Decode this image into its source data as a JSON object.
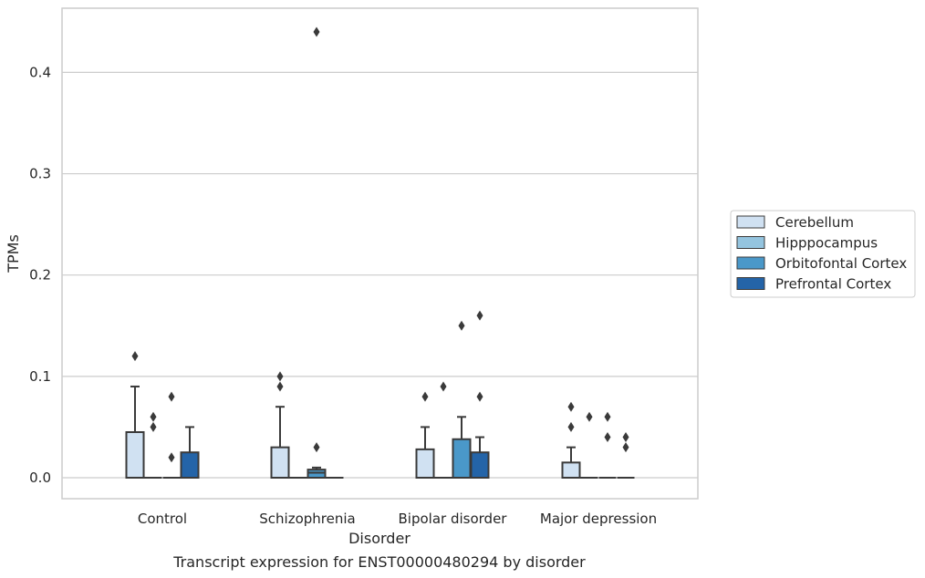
{
  "chart_data": {
    "type": "box",
    "title": "Transcript expression for ENST00000480294 by disorder",
    "xlabel": "Disorder",
    "ylabel": "TPMs",
    "ylim": [
      -0.021,
      0.465
    ],
    "yticks": [
      0.0,
      0.1,
      0.2,
      0.3,
      0.4
    ],
    "ytick_labels": [
      "0.0",
      "0.1",
      "0.2",
      "0.3",
      "0.4"
    ],
    "grid": "horizontal",
    "legend_position": "outside-right",
    "categories": [
      "Control",
      "Schizophrenia",
      "Bipolar disorder",
      "Major depression"
    ],
    "series": [
      {
        "name": "Cerebellum",
        "color": "#d0e1f2",
        "boxes": [
          {
            "q1": 0,
            "median": 0,
            "q3": 0.045,
            "whisker_low": 0,
            "whisker_high": 0.09,
            "outliers": [
              0.12
            ]
          },
          {
            "q1": 0,
            "median": 0,
            "q3": 0.03,
            "whisker_low": 0,
            "whisker_high": 0.07,
            "outliers": [
              0.09,
              0.1
            ]
          },
          {
            "q1": 0,
            "median": 0,
            "q3": 0.028,
            "whisker_low": 0,
            "whisker_high": 0.05,
            "outliers": [
              0.08
            ]
          },
          {
            "q1": 0,
            "median": 0,
            "q3": 0.015,
            "whisker_low": 0,
            "whisker_high": 0.03,
            "outliers": [
              0.05,
              0.07
            ]
          }
        ]
      },
      {
        "name": "Hipppocampus",
        "color": "#94c4df",
        "boxes": [
          {
            "q1": 0,
            "median": 0,
            "q3": 0,
            "whisker_low": 0,
            "whisker_high": 0,
            "outliers": [
              0.05,
              0.06
            ]
          },
          {
            "q1": 0,
            "median": 0,
            "q3": 0,
            "whisker_low": 0,
            "whisker_high": 0,
            "outliers": []
          },
          {
            "q1": 0,
            "median": 0,
            "q3": 0,
            "whisker_low": 0,
            "whisker_high": 0,
            "outliers": [
              0.09
            ]
          },
          {
            "q1": 0,
            "median": 0,
            "q3": 0,
            "whisker_low": 0,
            "whisker_high": 0,
            "outliers": [
              0.06
            ]
          }
        ]
      },
      {
        "name": "Orbitofontal Cortex",
        "color": "#4a98c9",
        "boxes": [
          {
            "q1": 0,
            "median": 0,
            "q3": 0,
            "whisker_low": 0,
            "whisker_high": 0,
            "outliers": [
              0.02,
              0.08
            ]
          },
          {
            "q1": 0,
            "median": 0.005,
            "q3": 0.008,
            "whisker_low": 0,
            "whisker_high": 0.01,
            "outliers": [
              0.03,
              0.44
            ]
          },
          {
            "q1": 0,
            "median": 0,
            "q3": 0.038,
            "whisker_low": 0,
            "whisker_high": 0.06,
            "outliers": [
              0.15
            ]
          },
          {
            "q1": 0,
            "median": 0,
            "q3": 0,
            "whisker_low": 0,
            "whisker_high": 0,
            "outliers": [
              0.04,
              0.06
            ]
          }
        ]
      },
      {
        "name": "Prefrontal Cortex",
        "color": "#2464a8",
        "boxes": [
          {
            "q1": 0,
            "median": 0,
            "q3": 0.025,
            "whisker_low": 0,
            "whisker_high": 0.05,
            "outliers": []
          },
          {
            "q1": 0,
            "median": 0,
            "q3": 0,
            "whisker_low": 0,
            "whisker_high": 0,
            "outliers": []
          },
          {
            "q1": 0,
            "median": 0,
            "q3": 0.025,
            "whisker_low": 0,
            "whisker_high": 0.04,
            "outliers": [
              0.08,
              0.16
            ]
          },
          {
            "q1": 0,
            "median": 0,
            "q3": 0,
            "whisker_low": 0,
            "whisker_high": 0,
            "outliers": [
              0.03,
              0.04
            ]
          }
        ]
      }
    ]
  }
}
